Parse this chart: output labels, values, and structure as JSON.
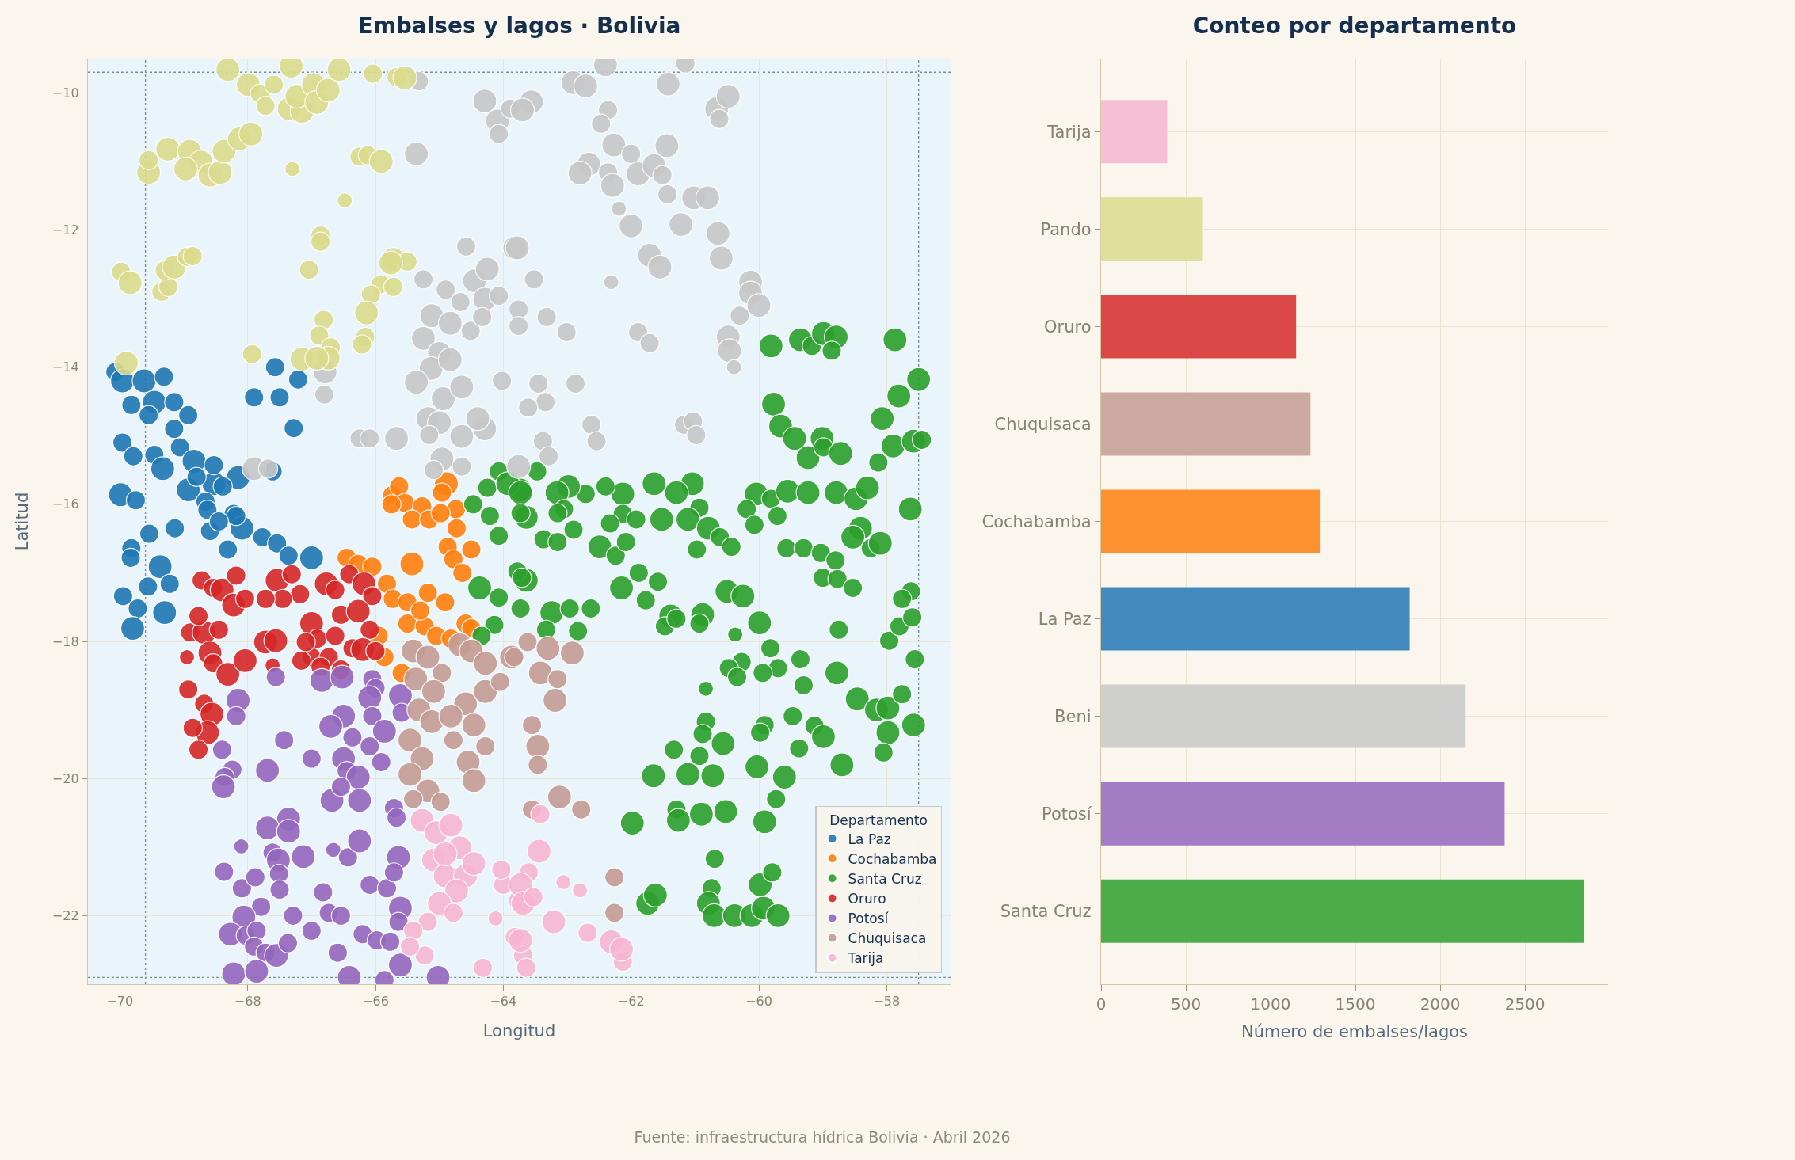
{
  "chart_data": [
    {
      "type": "bubble",
      "title": "Embalses y lagos · Bolivia",
      "xlabel": "Longitud",
      "ylabel": "Latitud",
      "legend_title": "Departamento",
      "legend": "bottom right",
      "marker": "circle",
      "grid": true,
      "annotations": [
        "Fuente: infraestructura hídrica Bolivia · Abril 2026"
      ],
      "xlim": [
        -70.5,
        -57.0
      ],
      "ylim": [
        -23.0,
        -9.5
      ],
      "xticks": [
        {
          "value": -70,
          "label": "−70"
        },
        {
          "value": -68,
          "label": "−68"
        },
        {
          "value": -66,
          "label": "−66"
        },
        {
          "value": -64,
          "label": "−64"
        },
        {
          "value": -62,
          "label": "−62"
        },
        {
          "value": -60,
          "label": "−60"
        },
        {
          "value": -58,
          "label": "−58"
        }
      ],
      "yticks": [
        {
          "value": -10,
          "label": "−10"
        },
        {
          "value": -12,
          "label": "−12"
        },
        {
          "value": -14,
          "label": "−14"
        },
        {
          "value": -16,
          "label": "−16"
        },
        {
          "value": -18,
          "label": "−18"
        },
        {
          "value": -20,
          "label": "−20"
        },
        {
          "value": -22,
          "label": "−22"
        }
      ],
      "ref_lines": [
        {
          "axis": "x",
          "value": -69.6,
          "line_style": "dotted",
          "color": "#7c9488"
        },
        {
          "axis": "x",
          "value": -57.5,
          "line_style": "dotted",
          "color": "#7c9488"
        },
        {
          "axis": "y",
          "value": -9.7,
          "line_style": "dotted",
          "color": "#7c9488"
        },
        {
          "axis": "y",
          "value": -22.9,
          "line_style": "dotted",
          "color": "#7c9488"
        }
      ],
      "series": [
        {
          "name": "La Paz",
          "color": "#1f77b4",
          "x": [
            -70.07,
            -69.96,
            -69.62,
            -69.31,
            -69.82,
            -69.46,
            -69.15,
            -68.93,
            -69.96,
            -69.79,
            -69.46,
            -69.33,
            -69.06,
            -68.84,
            -68.93,
            -69.99,
            -69.75,
            -68.53,
            -68.15,
            -68.66,
            -68.22,
            -69.54,
            -69.14,
            -69.82,
            -69.83,
            -69.37,
            -69.56,
            -69.22,
            -69.95,
            -69.72,
            -69.3,
            -69.8,
            -68.59,
            -68.09,
            -67.77,
            -67.54,
            -67.36,
            -67.0,
            -68.31,
            -68.18,
            -68.63,
            -67.9,
            -67.5,
            -67.28,
            -67.57,
            -67.21,
            -67.61,
            -69.55,
            -69.15,
            -68.53,
            -68.39,
            -68.8,
            -68.45
          ],
          "values": [
            -14.07,
            -14.2,
            -14.2,
            -14.14,
            -14.55,
            -14.51,
            -14.51,
            -14.7,
            -15.1,
            -15.3,
            -15.28,
            -15.48,
            -15.17,
            -15.37,
            -15.79,
            -15.86,
            -15.94,
            -15.7,
            -15.61,
            -15.96,
            -16.14,
            -16.43,
            -16.35,
            -16.64,
            -16.78,
            -16.91,
            -17.2,
            -17.16,
            -17.34,
            -17.52,
            -17.58,
            -17.81,
            -16.39,
            -16.35,
            -16.48,
            -16.57,
            -16.75,
            -16.78,
            -16.66,
            -16.17,
            -16.08,
            -14.44,
            -14.44,
            -14.89,
            -14.0,
            -14.18,
            -15.52,
            -14.7,
            -14.9,
            -15.43,
            -15.74,
            -15.6,
            -16.25
          ],
          "sizes": [
            0.65,
            1,
            1,
            0.65,
            0.65,
            1,
            0.65,
            0.65,
            0.65,
            0.65,
            0.65,
            1,
            0.65,
            1,
            1,
            1,
            0.65,
            1,
            1,
            0.65,
            0.65,
            0.65,
            0.65,
            0.65,
            0.65,
            1,
            0.65,
            0.65,
            0.65,
            0.65,
            1,
            1,
            0.65,
            1,
            0.65,
            0.65,
            0.65,
            1,
            0.65,
            0.65,
            0.65,
            0.65,
            0.65,
            0.65,
            0.65,
            0.65,
            0.65,
            0.65,
            0.65,
            0.65,
            0.65,
            0.65,
            0.65
          ]
        },
        {
          "name": "Cochabamba",
          "color": "#ff7f0e",
          "x": [
            -65.74,
            -65.63,
            -65.54,
            -65.27,
            -64.89,
            -64.96,
            -64.74,
            -65.43,
            -65.16,
            -64.98,
            -64.73,
            -64.87,
            -64.5,
            -64.78,
            -64.64,
            -65.43,
            -66.45,
            -66.27,
            -66.05,
            -65.82,
            -65.73,
            -65.5,
            -65.18,
            -64.91,
            -65.5,
            -65.23,
            -65.05,
            -64.82,
            -64.59,
            -64.5,
            -65.86,
            -65.59,
            -65.95,
            -65.75,
            -65.3
          ],
          "values": [
            -15.87,
            -15.74,
            -15.98,
            -16.03,
            -15.7,
            -15.83,
            -16.07,
            -16.22,
            -16.22,
            -16.13,
            -16.35,
            -16.62,
            -16.66,
            -16.8,
            -17.0,
            -16.87,
            -16.78,
            -16.87,
            -16.91,
            -17.16,
            -17.38,
            -17.43,
            -17.29,
            -17.43,
            -17.74,
            -17.78,
            -17.92,
            -17.96,
            -17.74,
            -17.81,
            -18.23,
            -18.46,
            -17.92,
            -16.0,
            -17.55
          ],
          "sizes": [
            0.65,
            0.65,
            0.65,
            0.65,
            1,
            0.65,
            0.65,
            0.65,
            0.65,
            0.65,
            0.65,
            0.65,
            0.65,
            0.65,
            0.65,
            1,
            0.65,
            0.65,
            0.65,
            0.65,
            0.65,
            0.65,
            0.65,
            0.65,
            0.65,
            0.65,
            0.65,
            0.65,
            0.65,
            0.65,
            0.65,
            0.65,
            0.65,
            0.65,
            0.65
          ]
        },
        {
          "name": "Santa Cruz",
          "color": "#2ca02c",
          "x": [
            -59.81,
            -59.35,
            -59.17,
            -58.99,
            -58.79,
            -58.86,
            -57.87,
            -57.5,
            -57.81,
            -59.77,
            -59.66,
            -59.44,
            -59.23,
            -59.01,
            -58.99,
            -58.72,
            -58.07,
            -58.13,
            -57.9,
            -57.58,
            -57.45,
            -57.63,
            -60.04,
            -59.81,
            -59.55,
            -59.23,
            -58.79,
            -58.48,
            -58.3,
            -60.19,
            -61.04,
            -61.64,
            -61.29,
            -60.93,
            -62.13,
            -62.4,
            -62.71,
            -62.98,
            -63.16,
            -63.74,
            -63.47,
            -63.05,
            -62.13,
            -64.07,
            -64.25,
            -63.93,
            -64.47,
            -63.73,
            -63.64,
            -63.15,
            -63.37,
            -63.15,
            -62.9,
            -62.49,
            -62.24,
            -62.08,
            -62.33,
            -61.92,
            -61.52,
            -61.11,
            -60.79,
            -60.97,
            -60.61,
            -60.43,
            -60.07,
            -59.71,
            -59.57,
            -59.3,
            -59.03,
            -58.8,
            -58.41,
            -58.53,
            -58.25,
            -58.1,
            -59.0,
            -58.77,
            -58.53,
            -57.62,
            -57.76,
            -63.64,
            -63.78,
            -63.73,
            -63.24,
            -62.96,
            -62.63,
            -62.83,
            -63.33,
            -62.15,
            -61.88,
            -61.58,
            -61.77,
            -61.38,
            -61.47,
            -61.29,
            -60.88,
            -60.93,
            -60.5,
            -60.25,
            -60.37,
            -59.99,
            -59.82,
            -59.7,
            -60.27,
            -60.47,
            -60.34,
            -59.94,
            -59.35,
            -59.3,
            -58.78,
            -58.46,
            -58.16,
            -57.98,
            -57.76,
            -57.58,
            -57.98,
            -58.05,
            -58.75,
            -57.96,
            -57.56,
            -57.8,
            -57.6,
            -60.83,
            -60.83,
            -60.88,
            -60.56,
            -61.33,
            -60.93,
            -61.11,
            -60.72,
            -61.65,
            -61.29,
            -61.26,
            -60.9,
            -60.52,
            -61.98,
            -60.03,
            -59.91,
            -59.98,
            -59.47,
            -59.37,
            -59.13,
            -58.99,
            -58.7,
            -59.6,
            -59.73,
            -59.91,
            -60.69,
            -60.74,
            -60.79,
            -60.7,
            -60.38,
            -60.11,
            -59.93,
            -59.98,
            -59.79,
            -59.7,
            -61.74,
            -61.62,
            -64.07,
            -64.37,
            -64.07,
            -64.14,
            -64.34,
            -63.71,
            -63.73,
            -64.21
          ],
          "values": [
            -13.69,
            -13.6,
            -13.69,
            -13.51,
            -13.56,
            -13.76,
            -13.6,
            -14.18,
            -14.42,
            -14.54,
            -14.86,
            -15.04,
            -15.32,
            -15.04,
            -15.17,
            -15.26,
            -14.75,
            -15.39,
            -15.15,
            -15.08,
            -15.06,
            -16.07,
            -15.85,
            -15.92,
            -15.81,
            -15.83,
            -15.83,
            -15.92,
            -15.76,
            -16.07,
            -15.7,
            -15.7,
            -15.83,
            -16.05,
            -15.85,
            -15.74,
            -15.85,
            -15.74,
            -15.83,
            -15.79,
            -15.52,
            -16.07,
            -16.14,
            -15.52,
            -15.76,
            -15.7,
            -16.0,
            -15.83,
            -16.19,
            -16.13,
            -16.51,
            -16.55,
            -16.37,
            -16.62,
            -16.75,
            -16.55,
            -16.28,
            -16.22,
            -16.22,
            -16.22,
            -16.35,
            -16.66,
            -16.48,
            -16.62,
            -16.3,
            -16.17,
            -16.64,
            -16.64,
            -16.71,
            -16.82,
            -16.35,
            -16.48,
            -16.64,
            -16.57,
            -17.07,
            -17.09,
            -17.22,
            -17.27,
            -17.38,
            -17.11,
            -16.98,
            -17.52,
            -17.58,
            -17.52,
            -17.52,
            -17.85,
            -17.83,
            -17.22,
            -17.0,
            -17.13,
            -17.4,
            -17.63,
            -17.78,
            -17.67,
            -17.61,
            -17.74,
            -17.27,
            -17.34,
            -17.9,
            -17.73,
            -18.1,
            -18.39,
            -18.3,
            -18.39,
            -18.52,
            -18.46,
            -18.26,
            -18.64,
            -18.46,
            -18.84,
            -19.0,
            -18.97,
            -18.77,
            -19.22,
            -19.33,
            -19.62,
            -17.83,
            -17.99,
            -18.26,
            -17.78,
            -17.65,
            -18.69,
            -19.17,
            -19.35,
            -19.49,
            -19.58,
            -19.67,
            -19.94,
            -19.96,
            -19.96,
            -20.45,
            -20.61,
            -20.52,
            -20.48,
            -20.65,
            -19.83,
            -19.22,
            -19.33,
            -19.09,
            -19.56,
            -19.23,
            -19.39,
            -19.8,
            -19.98,
            -20.3,
            -20.63,
            -21.17,
            -21.6,
            -21.82,
            -22.0,
            -22.0,
            -22.0,
            -21.89,
            -21.55,
            -21.37,
            -22.0,
            -21.82,
            -21.7,
            -16.46,
            -17.22,
            -17.36,
            -17.76,
            -17.92,
            -17.07,
            -16.13,
            -16.17
          ],
          "sizes": [
            1,
            1,
            0.65,
            1,
            1,
            0.65,
            1,
            1,
            1,
            1,
            1,
            1,
            1,
            1,
            0.65,
            1,
            1,
            0.65,
            1,
            1,
            0.65,
            1,
            1,
            0.65,
            1,
            1,
            1,
            1,
            1,
            0.65,
            1,
            1,
            1,
            0.65,
            1,
            0.65,
            0.65,
            1,
            1,
            1,
            0.65,
            0.65,
            0.65,
            0.65,
            0.65,
            1,
            0.65,
            1,
            1,
            0.65,
            0.65,
            0.65,
            0.65,
            1,
            0.65,
            0.65,
            0.65,
            0.65,
            1,
            1,
            1,
            0.65,
            0.65,
            0.65,
            0.65,
            0.65,
            0.65,
            0.65,
            0.65,
            0.65,
            1,
            1,
            0.65,
            1,
            0.65,
            0.65,
            0.65,
            0.65,
            0.65,
            1,
            0.65,
            0.65,
            1,
            0.65,
            0.65,
            0.65,
            0.65,
            1,
            0.65,
            0.65,
            0.65,
            1,
            0.65,
            0.65,
            1,
            0.65,
            1,
            1,
            0.4,
            1,
            0.65,
            0.65,
            0.65,
            0.65,
            0.65,
            0.65,
            0.65,
            0.65,
            1,
            1,
            1,
            1,
            0.65,
            1,
            1,
            0.65,
            0.65,
            0.65,
            0.65,
            0.65,
            0.65,
            0.4,
            0.65,
            0.65,
            1,
            0.65,
            0.65,
            1,
            1,
            1,
            0.65,
            1,
            1,
            1,
            1,
            1,
            0.65,
            0.65,
            0.65,
            0.65,
            0.65,
            1,
            1,
            1,
            0.65,
            1,
            0.65,
            0.65,
            1,
            1,
            1,
            1,
            1,
            1,
            0.65,
            1,
            1,
            1,
            0.65,
            1,
            0.65,
            0.65,
            0.65,
            0.65,
            0.65,
            0.65
          ]
        },
        {
          "name": "Oruro",
          "color": "#d62728",
          "x": [
            -68.72,
            -68.54,
            -68.4,
            -68.18,
            -68.22,
            -68.04,
            -68.9,
            -68.68,
            -68.45,
            -68.77,
            -68.95,
            -68.59,
            -68.54,
            -68.31,
            -68.04,
            -67.72,
            -67.56,
            -67.61,
            -68.93,
            -68.68,
            -68.56,
            -68.63,
            -68.86,
            -68.77,
            -67.54,
            -67.31,
            -67.18,
            -67.45,
            -67.72,
            -67.0,
            -66.91,
            -66.77,
            -66.63,
            -66.41,
            -66.18,
            -66.05,
            -66.54,
            -66.27,
            -66.09,
            -66.63,
            -66.36,
            -66.2,
            -66.0,
            -67.0,
            -66.73,
            -67.16,
            -67.09,
            -66.86,
            -66.54
          ],
          "values": [
            -17.11,
            -17.22,
            -17.25,
            -17.04,
            -17.47,
            -17.38,
            -17.87,
            -17.87,
            -17.83,
            -17.63,
            -18.23,
            -18.17,
            -18.32,
            -18.48,
            -18.28,
            -18.01,
            -17.99,
            -18.35,
            -18.7,
            -18.91,
            -19.06,
            -19.33,
            -19.26,
            -19.58,
            -17.11,
            -17.02,
            -17.31,
            -17.38,
            -17.38,
            -17.74,
            -17.96,
            -17.16,
            -17.25,
            -17.02,
            -17.16,
            -17.34,
            -17.61,
            -17.56,
            -17.83,
            -17.92,
            -18.1,
            -18.12,
            -18.14,
            -18.23,
            -18.23,
            -18.28,
            -18.01,
            -18.37,
            -18.41
          ],
          "sizes": [
            0.65,
            0.65,
            1,
            0.65,
            1,
            0.65,
            0.65,
            1,
            0.65,
            0.65,
            0.4,
            1,
            0.65,
            1,
            1,
            1,
            1,
            0.4,
            0.65,
            0.65,
            1,
            1,
            0.65,
            0.65,
            1,
            0.65,
            0.65,
            0.65,
            0.65,
            1,
            0.65,
            1,
            0.65,
            0.65,
            1,
            0.65,
            0.65,
            1,
            0.65,
            0.65,
            0.65,
            1,
            0.65,
            0.65,
            0.65,
            0.65,
            0.65,
            0.65,
            0.65
          ]
        },
        {
          "name": "Potosí",
          "color": "#9467bd",
          "x": [
            -67.56,
            -68.15,
            -68.18,
            -68.4,
            -68.24,
            -68.36,
            -68.38,
            -67.69,
            -67.43,
            -67.0,
            -66.84,
            -66.52,
            -66.5,
            -66.7,
            -66.36,
            -66.05,
            -66.0,
            -66.09,
            -65.61,
            -65.59,
            -66.05,
            -65.86,
            -66.09,
            -65.91,
            -66.5,
            -66.45,
            -66.27,
            -66.68,
            -66.25,
            -66.54,
            -65.71,
            -65.67,
            -67.36,
            -67.69,
            -67.36,
            -68.1,
            -67.61,
            -67.52,
            -67.13,
            -68.37,
            -67.51,
            -68.09,
            -67.88,
            -67.5,
            -67.79,
            -68.06,
            -68.27,
            -68.03,
            -67.86,
            -67.9,
            -67.72,
            -67.55,
            -67.37,
            -67.29,
            -67.0,
            -66.82,
            -66.73,
            -66.54,
            -66.59,
            -66.41,
            -66.66,
            -66.43,
            -66.25,
            -66.09,
            -65.82,
            -65.64,
            -65.71,
            -65.61,
            -65.64,
            -66.2,
            -65.98,
            -65.77,
            -65.61,
            -65.02,
            -65.86,
            -68.22,
            -67.86
          ],
          "values": [
            -18.52,
            -18.86,
            -19.09,
            -19.58,
            -19.87,
            -19.98,
            -20.12,
            -19.88,
            -19.44,
            -19.71,
            -18.57,
            -18.52,
            -19.09,
            -19.24,
            -19.4,
            -18.55,
            -18.68,
            -18.82,
            -18.79,
            -19.04,
            -19.09,
            -19.31,
            -19.53,
            -19.76,
            -19.71,
            -19.89,
            -19.98,
            -20.32,
            -20.32,
            -20.12,
            -20.43,
            -20.57,
            -20.59,
            -20.72,
            -20.77,
            -20.99,
            -21.08,
            -21.19,
            -21.14,
            -21.36,
            -21.39,
            -21.6,
            -21.44,
            -21.62,
            -21.87,
            -22.02,
            -22.27,
            -22.29,
            -22.22,
            -22.45,
            -22.54,
            -22.58,
            -22.4,
            -22.0,
            -22.22,
            -21.66,
            -21.96,
            -22.0,
            -22.54,
            -22.9,
            -21.04,
            -21.15,
            -20.91,
            -21.55,
            -21.6,
            -21.15,
            -21.37,
            -21.89,
            -22.09,
            -22.27,
            -22.36,
            -22.38,
            -22.72,
            -22.9,
            -22.94,
            -22.85,
            -22.81
          ],
          "sizes": [
            0.65,
            1,
            0.65,
            0.65,
            0.65,
            0.65,
            1,
            1,
            0.65,
            0.65,
            1,
            1,
            1,
            1,
            0.65,
            0.65,
            0.65,
            1,
            1,
            0.65,
            0.65,
            1,
            0.65,
            0.65,
            1,
            0.65,
            1,
            1,
            1,
            0.65,
            0.65,
            0.65,
            1,
            1,
            1,
            0.4,
            0.65,
            1,
            1,
            0.65,
            0.65,
            0.65,
            0.65,
            0.65,
            0.65,
            1,
            1,
            0.65,
            0.65,
            0.65,
            0.65,
            1,
            0.65,
            0.65,
            0.65,
            0.65,
            0.65,
            0.65,
            0.65,
            1,
            0.4,
            0.65,
            1,
            0.65,
            0.65,
            1,
            0.65,
            1,
            0.65,
            0.65,
            0.65,
            0.65,
            1,
            1,
            0.65,
            1,
            1
          ]
        },
        {
          "name": "Chuquisaca",
          "color": "#c49c94",
          "x": [
            -65.41,
            -65.18,
            -64.96,
            -64.68,
            -64.5,
            -64.28,
            -63.87,
            -65.37,
            -65.09,
            -64.59,
            -64.28,
            -64.05,
            -65.32,
            -65.12,
            -64.82,
            -64.46,
            -64.28,
            -65.46,
            -65.27,
            -64.78,
            -64.55,
            -64.46,
            -65.46,
            -65.18,
            -65.41,
            -64.98,
            -63.62,
            -63.3,
            -63.83,
            -63.42,
            -63.15,
            -63.19,
            -62.92,
            -63.55,
            -63.46,
            -63.46,
            -63.12,
            -63.55,
            -62.78,
            -62.26,
            -62.26
          ],
          "values": [
            -18.14,
            -18.23,
            -18.46,
            -18.05,
            -18.14,
            -18.32,
            -18.23,
            -18.55,
            -18.73,
            -18.91,
            -18.73,
            -18.59,
            -19.0,
            -19.17,
            -19.09,
            -19.22,
            -19.53,
            -19.44,
            -19.71,
            -19.44,
            -19.76,
            -20.03,
            -19.94,
            -20.18,
            -20.3,
            -20.34,
            -18.01,
            -18.1,
            -18.23,
            -18.46,
            -18.55,
            -18.86,
            -18.17,
            -19.22,
            -19.53,
            -19.8,
            -20.27,
            -20.45,
            -20.45,
            -21.44,
            -21.96
          ],
          "sizes": [
            1,
            1,
            0.65,
            1,
            1,
            1,
            1,
            1,
            1,
            1,
            1,
            0.65,
            1,
            1,
            1,
            1,
            0.65,
            1,
            1,
            0.65,
            1,
            1,
            1,
            1,
            0.65,
            0.65,
            0.65,
            1,
            0.65,
            1,
            0.65,
            1,
            1,
            0.65,
            1,
            0.65,
            1,
            0.65,
            0.65,
            0.65,
            0.65
          ]
        },
        {
          "name": "Tarija",
          "color": "#f7b6d2",
          "x": [
            -65.27,
            -65.05,
            -64.82,
            -64.68,
            -65.09,
            -64.91,
            -64.59,
            -64.46,
            -64.73,
            -65.0,
            -64.78,
            -65.18,
            -65.41,
            -65.23,
            -65.46,
            -64.32,
            -64.12,
            -64.0,
            -63.73,
            -64.03,
            -63.82,
            -63.69,
            -63.44,
            -63.6,
            -63.73,
            -63.69,
            -63.53,
            -63.73,
            -63.64,
            -63.21,
            -63.06,
            -62.8,
            -62.68,
            -62.31,
            -62.13,
            -62.15,
            -63.42,
            -64.91
          ],
          "values": [
            -20.61,
            -20.79,
            -20.68,
            -21.01,
            -21.19,
            -21.42,
            -21.42,
            -21.24,
            -21.64,
            -21.82,
            -21.96,
            -22.09,
            -22.22,
            -22.58,
            -22.45,
            -22.76,
            -22.04,
            -21.55,
            -21.78,
            -21.33,
            -22.31,
            -22.58,
            -21.06,
            -21.37,
            -21.55,
            -21.82,
            -21.73,
            -22.36,
            -22.76,
            -22.09,
            -21.51,
            -21.63,
            -22.25,
            -22.38,
            -22.67,
            -22.49,
            -20.52,
            -21.1
          ],
          "sizes": [
            1,
            1,
            1,
            1,
            1,
            1,
            1,
            1,
            1,
            1,
            0.65,
            0.65,
            0.65,
            0.65,
            0.65,
            0.65,
            0.4,
            0.65,
            1,
            0.65,
            0.65,
            0.65,
            1,
            0.65,
            1,
            1,
            0.65,
            1,
            0.65,
            1,
            0.4,
            0.4,
            0.65,
            1,
            0.65,
            1,
            0.65,
            1
          ]
        },
        {
          "color": "#c7c7c7",
          "x": [
            -65.32,
            -64.29,
            -64.09,
            -64.07,
            -63.89,
            -65.36,
            -64.58,
            -63.82,
            -64.45,
            -64.25,
            -65.25,
            -64.9,
            -64.67,
            -64.29,
            -64.07,
            -65.12,
            -64.83,
            -65.25,
            -64.51,
            -64.33,
            -65.0,
            -65.13,
            -64.83,
            -65.36,
            -64.94,
            -64.65,
            -64.02,
            -65.18,
            -65.0,
            -64.65,
            -64.29,
            -64.4,
            -65.16,
            -66.25,
            -66.09,
            -65.67,
            -64.96,
            -64.65,
            -65.09,
            -66.79,
            -66.8,
            -67.9,
            -67.68,
            -63.76,
            -62.91,
            -62.71,
            -62.4,
            -61.15,
            -61.42,
            -63.56,
            -63.7,
            -60.66,
            -60.48,
            -60.62,
            -62.36,
            -62.47,
            -62.27,
            -62.0,
            -61.44,
            -62.66,
            -62.8,
            -62.36,
            -62.29,
            -61.89,
            -61.64,
            -61.51,
            -61.43,
            -61.02,
            -60.8,
            -62.19,
            -62.0,
            -61.22,
            -60.64,
            -60.59,
            -63.78,
            -61.71,
            -61.55,
            -62.31,
            -63.52,
            -60.13,
            -60.13,
            -60.0,
            -60.3,
            -63.76,
            -63.76,
            -63.32,
            -63.01,
            -61.89,
            -61.71,
            -60.48,
            -60.46,
            -60.39,
            -62.87,
            -63.45,
            -63.34,
            -63.61,
            -62.62,
            -62.54,
            -61.17,
            -61.03,
            -60.98,
            -63.38,
            -63.29
          ],
          "values": [
            -9.83,
            -10.12,
            -10.41,
            -10.6,
            -10.23,
            -10.89,
            -12.24,
            -12.26,
            -12.74,
            -12.57,
            -12.72,
            -12.87,
            -13.05,
            -13.01,
            -12.96,
            -13.25,
            -13.36,
            -13.58,
            -13.47,
            -13.27,
            -13.8,
            -14.02,
            -13.89,
            -14.22,
            -14.46,
            -14.29,
            -14.2,
            -14.75,
            -14.81,
            -15.01,
            -14.9,
            -14.75,
            -14.99,
            -15.04,
            -15.04,
            -15.04,
            -15.34,
            -15.45,
            -15.5,
            -14.07,
            -14.4,
            -15.48,
            -15.48,
            -15.45,
            -9.85,
            -9.9,
            -9.59,
            -9.57,
            -9.87,
            -10.13,
            -10.25,
            -10.23,
            -10.05,
            -10.38,
            -10.25,
            -10.45,
            -10.76,
            -10.89,
            -10.77,
            -11.04,
            -11.17,
            -11.16,
            -11.35,
            -11.18,
            -11.06,
            -11.2,
            -11.48,
            -11.53,
            -11.53,
            -11.69,
            -11.94,
            -11.92,
            -12.05,
            -12.41,
            -12.26,
            -12.37,
            -12.54,
            -12.76,
            -12.72,
            -12.76,
            -12.92,
            -13.1,
            -13.25,
            -13.16,
            -13.4,
            -13.27,
            -13.49,
            -13.49,
            -13.65,
            -13.56,
            -13.76,
            -14.0,
            -14.24,
            -14.24,
            -14.51,
            -14.59,
            -14.84,
            -15.08,
            -14.84,
            -14.79,
            -14.99,
            -15.08,
            -15.3
          ],
          "sizes": [
            0.65,
            1,
            1,
            0.65,
            0.65,
            1,
            0.65,
            1,
            1,
            1,
            0.65,
            0.65,
            0.65,
            1,
            0.65,
            1,
            1,
            1,
            0.65,
            0.65,
            1,
            1,
            1,
            1,
            1,
            1,
            0.65,
            1,
            1,
            1,
            1,
            1,
            0.65,
            0.65,
            0.65,
            1,
            1,
            0.65,
            0.65,
            1,
            0.65,
            1,
            0.65,
            1,
            1,
            1,
            1,
            0.65,
            1,
            1,
            1,
            1,
            1,
            0.65,
            0.65,
            0.65,
            1,
            0.65,
            1,
            1,
            1,
            0.65,
            1,
            1,
            1,
            0.65,
            0.65,
            1,
            1,
            0.4,
            1,
            1,
            1,
            1,
            1,
            1,
            1,
            0.4,
            0.65,
            1,
            1,
            1,
            0.65,
            0.65,
            0.65,
            0.65,
            0.65,
            0.65,
            0.65,
            1,
            1,
            0.4,
            0.65,
            0.65,
            0.65,
            0.65,
            0.65,
            0.65,
            0.65,
            0.65,
            0.65,
            0.65,
            0.65
          ]
        },
        {
          "color": "#dbdb8d",
          "x": [
            -68.31,
            -67.99,
            -67.81,
            -67.72,
            -67.59,
            -67.32,
            -67.35,
            -67.15,
            -67.23,
            -66.97,
            -66.92,
            -66.74,
            -66.57,
            -66.04,
            -65.67,
            -65.54,
            -69.55,
            -69.55,
            -69.25,
            -68.91,
            -68.73,
            -68.97,
            -68.59,
            -68.43,
            -68.37,
            -68.13,
            -67.95,
            -67.3,
            -66.48,
            -66.25,
            -66.12,
            -65.91,
            -66.86,
            -66.86,
            -67.04,
            -69.98,
            -69.84,
            -69.35,
            -69.24,
            -69.3,
            -69.15,
            -68.95,
            -68.86,
            -66.81,
            -66.88,
            -66.7,
            -66.74,
            -67.15,
            -66.92,
            -67.93,
            -69.9,
            -65.72,
            -65.5,
            -65.76,
            -65.92,
            -65.72,
            -66.07,
            -66.14,
            -66.16,
            -66.21
          ],
          "values": [
            -9.66,
            -9.88,
            -10.01,
            -10.19,
            -9.88,
            -9.61,
            -10.23,
            -10.27,
            -10.05,
            -9.88,
            -10.14,
            -9.96,
            -9.66,
            -9.72,
            -9.77,
            -9.78,
            -11.16,
            -10.98,
            -10.82,
            -10.85,
            -11.01,
            -11.11,
            -11.2,
            -11.16,
            -10.85,
            -10.67,
            -10.6,
            -11.11,
            -11.57,
            -10.93,
            -10.91,
            -11.0,
            -12.08,
            -12.17,
            -12.58,
            -12.61,
            -12.77,
            -12.9,
            -12.83,
            -12.59,
            -12.54,
            -12.39,
            -12.38,
            -13.31,
            -13.54,
            -13.71,
            -13.87,
            -13.88,
            -13.87,
            -13.81,
            -13.94,
            -12.43,
            -12.46,
            -12.48,
            -12.79,
            -12.83,
            -12.94,
            -13.21,
            -13.56,
            -13.67
          ],
          "sizes": [
            1,
            1,
            0.65,
            0.65,
            0.65,
            1,
            1,
            1,
            1,
            1,
            1,
            1,
            1,
            0.65,
            0.65,
            1,
            1,
            0.65,
            1,
            1,
            1,
            1,
            1,
            1,
            1,
            1,
            1,
            0.4,
            0.4,
            0.65,
            0.65,
            1,
            0.65,
            0.65,
            0.65,
            0.65,
            1,
            0.65,
            0.65,
            0.65,
            1,
            0.65,
            0.65,
            0.65,
            0.65,
            0.65,
            1,
            1,
            1,
            0.65,
            1,
            1,
            0.65,
            1,
            0.65,
            0.65,
            0.65,
            1,
            0.65,
            0.65
          ]
        }
      ]
    },
    {
      "type": "bar",
      "orientation": "horizontal",
      "title": "Conteo por departamento",
      "xlabel": "Número de embalses/lagos",
      "grid": true,
      "categories": [
        "Tarija",
        "Pando",
        "Oruro",
        "Chuquisaca",
        "Cochabamba",
        "La Paz",
        "Beni",
        "Potosí",
        "Santa Cruz"
      ],
      "values": [
        390,
        600,
        1150,
        1235,
        1290,
        1820,
        2150,
        2380,
        2850
      ],
      "colors": [
        "#f7bfd6",
        "#dfdf9c",
        "#db4646",
        "#cca9a1",
        "#fe912f",
        "#408abd",
        "#cfcfcd",
        "#a37cc4",
        "#4bad49"
      ],
      "xlim": [
        0,
        2990
      ],
      "xticks": [
        0,
        500,
        1000,
        1500,
        2000,
        2500
      ]
    }
  ]
}
